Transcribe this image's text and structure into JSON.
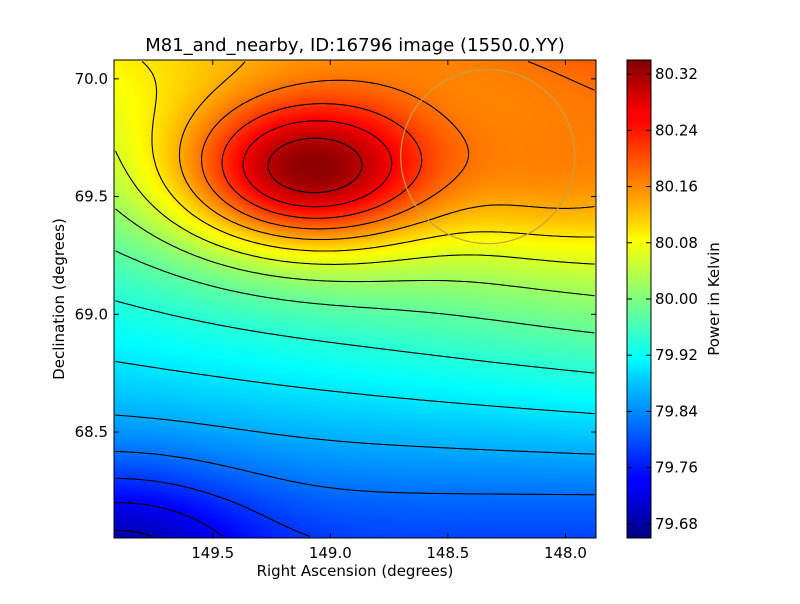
{
  "chart_data": {
    "type": "heatmap",
    "title": "M81_and_nearby, ID:16796 image (1550.0,YY)",
    "xlabel": "Right Ascension (degrees)",
    "ylabel": "Declination (degrees)",
    "x_ticks": [
      149.5,
      149.0,
      148.5,
      148.0
    ],
    "x_tick_labels": [
      "149.5",
      "149.0",
      "148.5",
      "148.0"
    ],
    "y_ticks": [
      68.5,
      69.0,
      69.5,
      70.0
    ],
    "y_tick_labels": [
      "68.5",
      "69.0",
      "69.5",
      "70.0"
    ],
    "xlim": [
      149.92,
      147.87
    ],
    "ylim": [
      68.05,
      70.08
    ],
    "x_reversed": true,
    "colorbar": {
      "label": "Power in Kelvin",
      "ticks": [
        79.68,
        79.76,
        79.84,
        79.92,
        80.0,
        80.08,
        80.16,
        80.24,
        80.32
      ],
      "tick_labels": [
        "79.68",
        "79.76",
        "79.84",
        "79.92",
        "80.00",
        "80.08",
        "80.16",
        "80.24",
        "80.32"
      ],
      "range": [
        79.66,
        80.34
      ],
      "colormap": "jet"
    },
    "peak": {
      "ra": 149.1,
      "dec": 69.6,
      "value": 80.33
    },
    "minimum": {
      "ra": 149.9,
      "dec": 68.05,
      "value": 79.66
    },
    "overlay_circle": {
      "center_ra": 148.33,
      "center_dec": 69.67,
      "radius_deg": 0.37,
      "color": "#c8a040"
    },
    "contours": true,
    "grid": false,
    "contour_color": "#000000"
  }
}
